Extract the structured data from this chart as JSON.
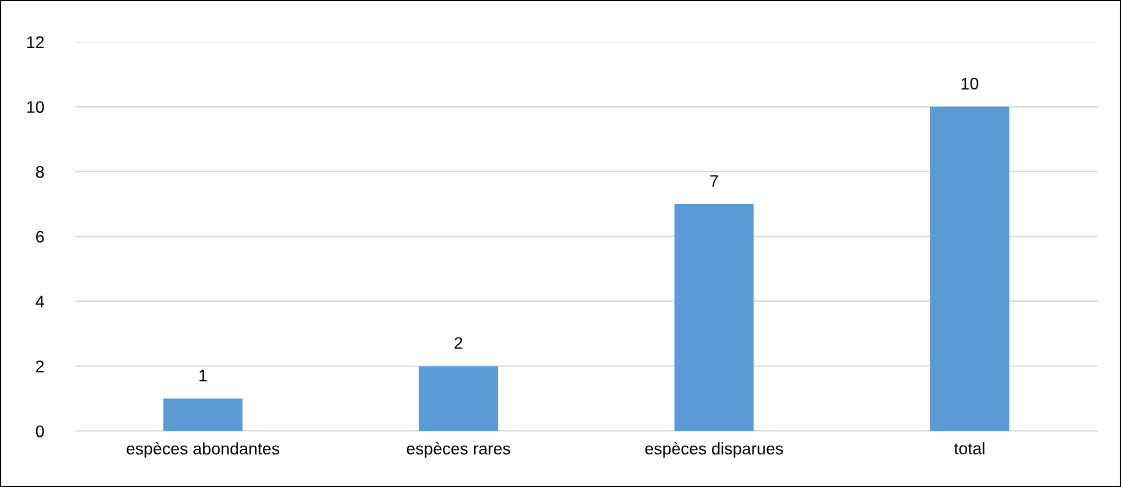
{
  "chart_data": {
    "type": "bar",
    "categories": [
      "espèces abondantes",
      "espèces rares",
      "espèces disparues",
      "total"
    ],
    "values": [
      1,
      2,
      7,
      10
    ],
    "color": "#5b9bd5",
    "ylim": [
      0,
      12
    ],
    "yticks": [
      0,
      2,
      4,
      6,
      8,
      10,
      12
    ],
    "grid": "y",
    "data_labels": true,
    "legend": false
  }
}
